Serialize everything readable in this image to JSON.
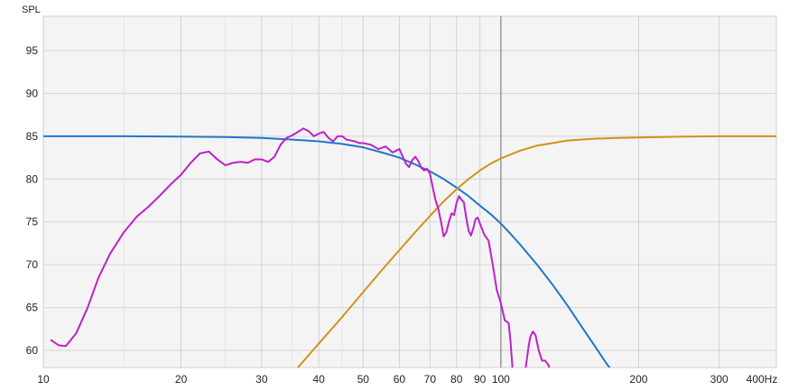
{
  "chart_data": {
    "type": "line",
    "ylabel": "SPL",
    "x_unit": "Hz",
    "x_scale": "log",
    "xlim": [
      10,
      400
    ],
    "ylim": [
      58,
      99
    ],
    "grid": true,
    "y_ticks": [
      60,
      65,
      70,
      75,
      80,
      85,
      90,
      95
    ],
    "x_ticks": [
      {
        "value": 10,
        "label": "10"
      },
      {
        "value": 20,
        "label": "20"
      },
      {
        "value": 30,
        "label": "30"
      },
      {
        "value": 40,
        "label": "40"
      },
      {
        "value": 50,
        "label": "50"
      },
      {
        "value": 60,
        "label": "60"
      },
      {
        "value": 70,
        "label": "70"
      },
      {
        "value": 80,
        "label": "80"
      },
      {
        "value": 90,
        "label": "90"
      },
      {
        "value": 100,
        "label": "100"
      },
      {
        "value": 200,
        "label": "200"
      },
      {
        "value": 300,
        "label": "300"
      },
      {
        "value": 400,
        "label": "400"
      }
    ],
    "x_minor_gridlines": [
      15,
      25,
      35,
      45
    ],
    "marker_line_x": 100,
    "marker_line_color": "#999999",
    "series": [
      {
        "color": "#1f78c8",
        "points": [
          [
            10,
            85.0
          ],
          [
            15,
            85.0
          ],
          [
            20,
            84.95
          ],
          [
            25,
            84.9
          ],
          [
            30,
            84.8
          ],
          [
            35,
            84.6
          ],
          [
            40,
            84.4
          ],
          [
            45,
            84.1
          ],
          [
            50,
            83.7
          ],
          [
            55,
            83.1
          ],
          [
            60,
            82.5
          ],
          [
            65,
            81.7
          ],
          [
            70,
            80.9
          ],
          [
            75,
            80.0
          ],
          [
            80,
            79.0
          ],
          [
            85,
            78.0
          ],
          [
            90,
            76.9
          ],
          [
            95,
            75.9
          ],
          [
            100,
            74.8
          ],
          [
            105,
            73.6
          ],
          [
            110,
            72.4
          ],
          [
            120,
            70.0
          ],
          [
            130,
            67.6
          ],
          [
            140,
            65.2
          ],
          [
            150,
            62.8
          ],
          [
            160,
            60.6
          ],
          [
            170,
            58.5
          ],
          [
            175,
            57.6
          ]
        ]
      },
      {
        "color": "#d4901c",
        "points": [
          [
            36,
            58.0
          ],
          [
            40,
            60.8
          ],
          [
            45,
            63.9
          ],
          [
            50,
            66.8
          ],
          [
            55,
            69.4
          ],
          [
            60,
            71.7
          ],
          [
            65,
            73.8
          ],
          [
            70,
            75.7
          ],
          [
            75,
            77.4
          ],
          [
            80,
            78.8
          ],
          [
            85,
            80.0
          ],
          [
            90,
            81.0
          ],
          [
            95,
            81.8
          ],
          [
            100,
            82.4
          ],
          [
            110,
            83.3
          ],
          [
            120,
            83.9
          ],
          [
            130,
            84.2
          ],
          [
            140,
            84.5
          ],
          [
            160,
            84.7
          ],
          [
            180,
            84.8
          ],
          [
            200,
            84.85
          ],
          [
            250,
            84.95
          ],
          [
            300,
            85.0
          ],
          [
            350,
            85.0
          ],
          [
            400,
            85.0
          ]
        ]
      },
      {
        "color": "#c020c8",
        "points": [
          [
            10.4,
            61.2
          ],
          [
            10.8,
            60.6
          ],
          [
            11.2,
            60.5
          ],
          [
            11.8,
            62.0
          ],
          [
            12.5,
            65.0
          ],
          [
            13.2,
            68.5
          ],
          [
            14,
            71.3
          ],
          [
            15,
            73.8
          ],
          [
            16,
            75.6
          ],
          [
            17,
            76.8
          ],
          [
            18,
            78.1
          ],
          [
            19,
            79.4
          ],
          [
            20,
            80.5
          ],
          [
            21,
            81.9
          ],
          [
            22,
            83.0
          ],
          [
            23,
            83.2
          ],
          [
            24,
            82.3
          ],
          [
            25,
            81.6
          ],
          [
            26,
            81.9
          ],
          [
            27,
            82.0
          ],
          [
            28,
            81.9
          ],
          [
            29,
            82.3
          ],
          [
            30,
            82.3
          ],
          [
            31,
            82.0
          ],
          [
            32,
            82.6
          ],
          [
            33,
            84.0
          ],
          [
            34,
            84.8
          ],
          [
            35,
            85.1
          ],
          [
            36,
            85.5
          ],
          [
            37,
            85.9
          ],
          [
            38,
            85.6
          ],
          [
            39,
            85.0
          ],
          [
            40,
            85.3
          ],
          [
            41,
            85.5
          ],
          [
            42,
            84.8
          ],
          [
            43,
            84.4
          ],
          [
            44,
            85.0
          ],
          [
            45,
            85.0
          ],
          [
            46,
            84.6
          ],
          [
            47,
            84.5
          ],
          [
            48,
            84.4
          ],
          [
            49,
            84.2
          ],
          [
            50,
            84.2
          ],
          [
            52,
            84.0
          ],
          [
            54,
            83.5
          ],
          [
            56,
            83.8
          ],
          [
            58,
            83.1
          ],
          [
            60,
            83.5
          ],
          [
            62,
            81.8
          ],
          [
            63,
            81.4
          ],
          [
            64,
            82.2
          ],
          [
            65,
            82.6
          ],
          [
            66,
            82.1
          ],
          [
            67,
            81.3
          ],
          [
            68,
            81.0
          ],
          [
            69,
            81.2
          ],
          [
            70,
            80.6
          ],
          [
            71,
            79.0
          ],
          [
            72,
            77.5
          ],
          [
            73,
            76.5
          ],
          [
            74,
            75.0
          ],
          [
            75,
            73.3
          ],
          [
            76,
            73.8
          ],
          [
            77,
            75.0
          ],
          [
            78,
            76.0
          ],
          [
            79,
            75.8
          ],
          [
            80,
            77.2
          ],
          [
            81,
            78.0
          ],
          [
            82,
            77.6
          ],
          [
            83,
            77.3
          ],
          [
            84,
            75.5
          ],
          [
            85,
            74.0
          ],
          [
            86,
            73.4
          ],
          [
            87,
            74.2
          ],
          [
            88,
            75.3
          ],
          [
            89,
            75.5
          ],
          [
            90,
            74.8
          ],
          [
            92,
            73.5
          ],
          [
            94,
            72.8
          ],
          [
            96,
            70.0
          ],
          [
            98,
            67.0
          ],
          [
            100,
            65.5
          ],
          [
            102,
            63.5
          ],
          [
            104,
            63.2
          ],
          [
            105,
            61.0
          ],
          [
            106,
            58.0
          ],
          [
            107,
            57.5
          ]
        ]
      },
      {
        "color": "#c020c8",
        "points": [
          [
            113,
            57.5
          ],
          [
            114,
            59.0
          ],
          [
            115,
            60.5
          ],
          [
            116,
            61.6
          ],
          [
            117.5,
            62.2
          ],
          [
            119,
            61.8
          ],
          [
            121,
            60.0
          ],
          [
            123,
            58.8
          ],
          [
            125,
            58.8
          ],
          [
            127,
            58.3
          ],
          [
            128,
            57.8
          ]
        ]
      }
    ]
  }
}
